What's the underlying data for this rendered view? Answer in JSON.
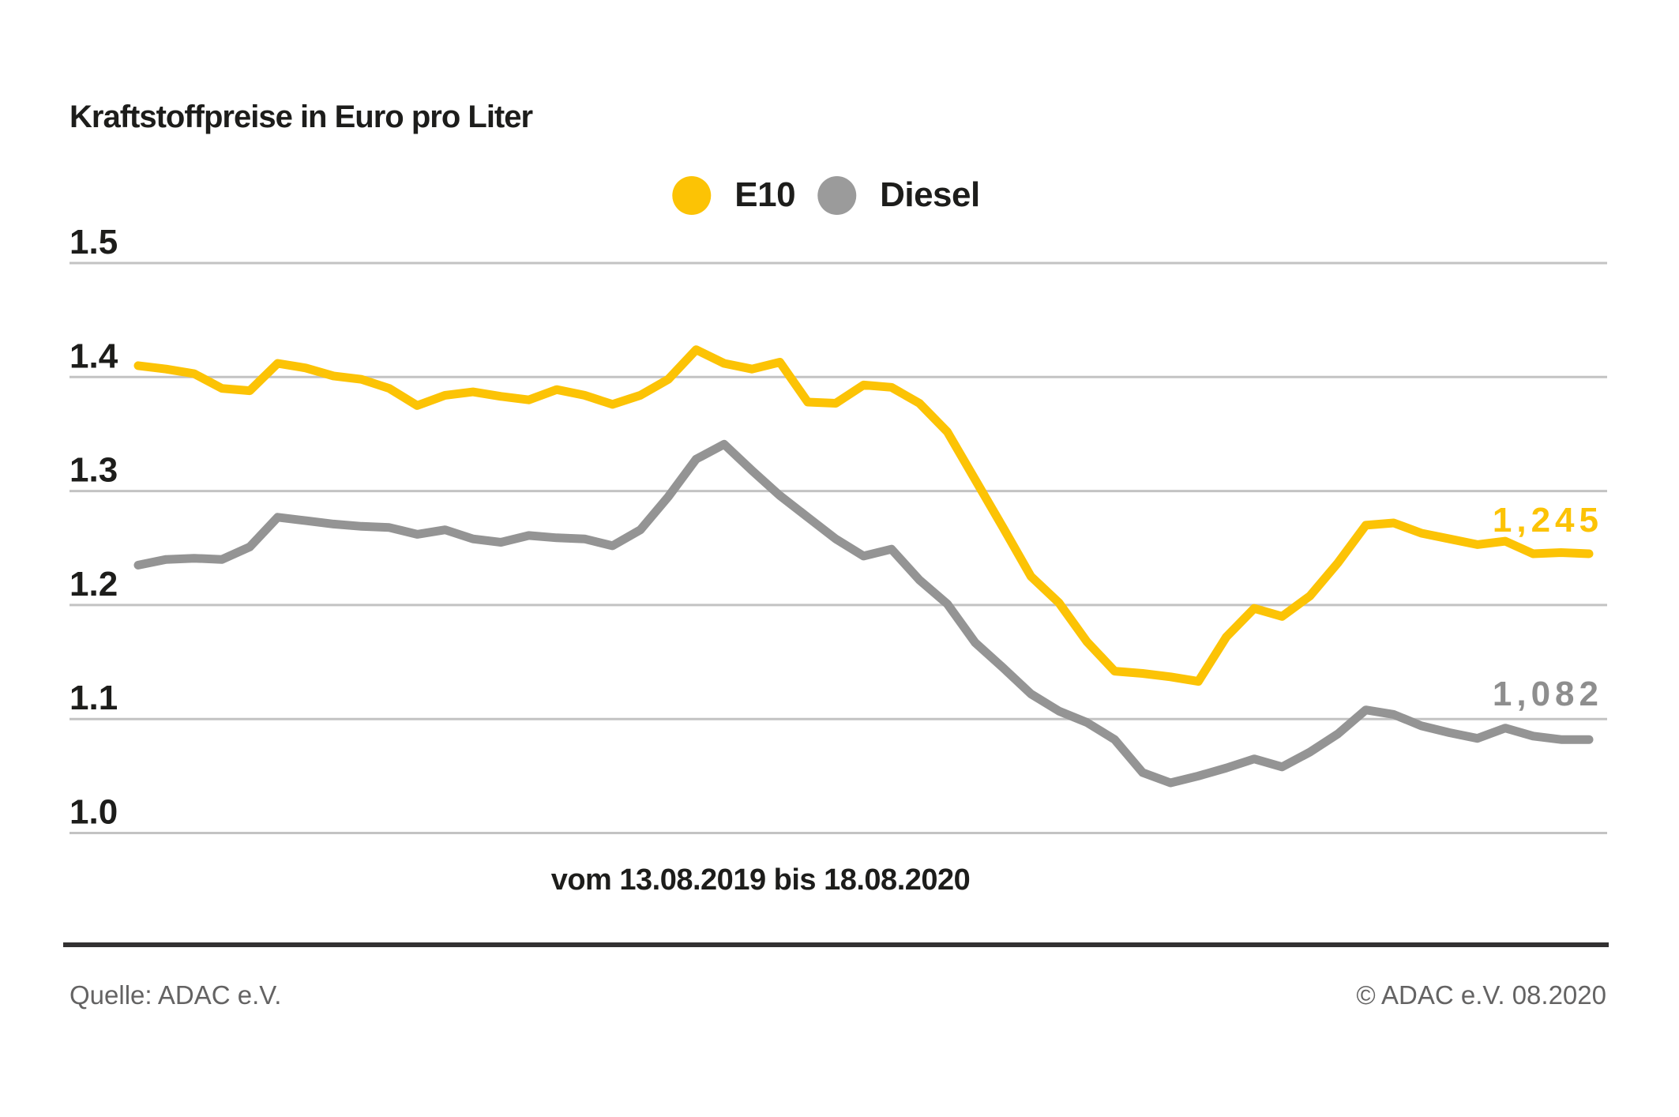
{
  "header": {
    "title": "Kraftstoffpreise in Euro pro Liter"
  },
  "legend": {
    "items": [
      {
        "label": "E10",
        "color": "#fcc305"
      },
      {
        "label": "Diesel",
        "color": "#9b9b9b"
      }
    ]
  },
  "chart_data": {
    "type": "line",
    "title": "Kraftstoffpreise in Euro pro Liter",
    "unit": "Euro pro Liter",
    "x_axis_label": "vom 13.08.2019 bis 18.08.2020",
    "x_range_start": "13.08.2019",
    "x_range_end": "18.08.2020",
    "x_interval": "weekly",
    "grid": "horizontal",
    "legend_position": "top-center",
    "ylim": [
      0.97,
      1.53
    ],
    "y_ticks": [
      1.5,
      1.4,
      1.3,
      1.2,
      1.1,
      1.0
    ],
    "y_tick_labels": [
      "1.5",
      "1.4",
      "1.3",
      "1.2",
      "1.1",
      "1.0"
    ],
    "gridline_color": "#c3c3c3",
    "series": [
      {
        "name": "E10",
        "color": "#fcc305",
        "label_color": "#fcc305",
        "end_label": "1,245",
        "final_value": 1.245,
        "values": [
          1.41,
          1.407,
          1.403,
          1.39,
          1.388,
          1.412,
          1.408,
          1.401,
          1.398,
          1.39,
          1.375,
          1.384,
          1.387,
          1.383,
          1.38,
          1.389,
          1.384,
          1.376,
          1.384,
          1.398,
          1.424,
          1.412,
          1.407,
          1.413,
          1.378,
          1.377,
          1.393,
          1.391,
          1.377,
          1.352,
          1.31,
          1.268,
          1.225,
          1.202,
          1.168,
          1.142,
          1.14,
          1.137,
          1.133,
          1.172,
          1.197,
          1.19,
          1.208,
          1.237,
          1.27,
          1.272,
          1.263,
          1.258,
          1.253,
          1.256,
          1.245,
          1.246,
          1.245
        ]
      },
      {
        "name": "Diesel",
        "color": "#949494",
        "label_color": "#8e8e8e",
        "end_label": "1,082",
        "final_value": 1.082,
        "values": [
          1.235,
          1.24,
          1.241,
          1.24,
          1.251,
          1.277,
          1.274,
          1.271,
          1.269,
          1.268,
          1.262,
          1.266,
          1.258,
          1.255,
          1.261,
          1.259,
          1.258,
          1.252,
          1.266,
          1.295,
          1.328,
          1.341,
          1.318,
          1.296,
          1.277,
          1.258,
          1.243,
          1.249,
          1.222,
          1.201,
          1.167,
          1.145,
          1.122,
          1.107,
          1.097,
          1.082,
          1.053,
          1.044,
          1.05,
          1.057,
          1.065,
          1.058,
          1.071,
          1.087,
          1.108,
          1.104,
          1.094,
          1.088,
          1.083,
          1.092,
          1.085,
          1.082,
          1.082
        ]
      }
    ]
  },
  "footer": {
    "source": "Quelle: ADAC e.V.",
    "copyright": "© ADAC e.V. 08.2020"
  }
}
